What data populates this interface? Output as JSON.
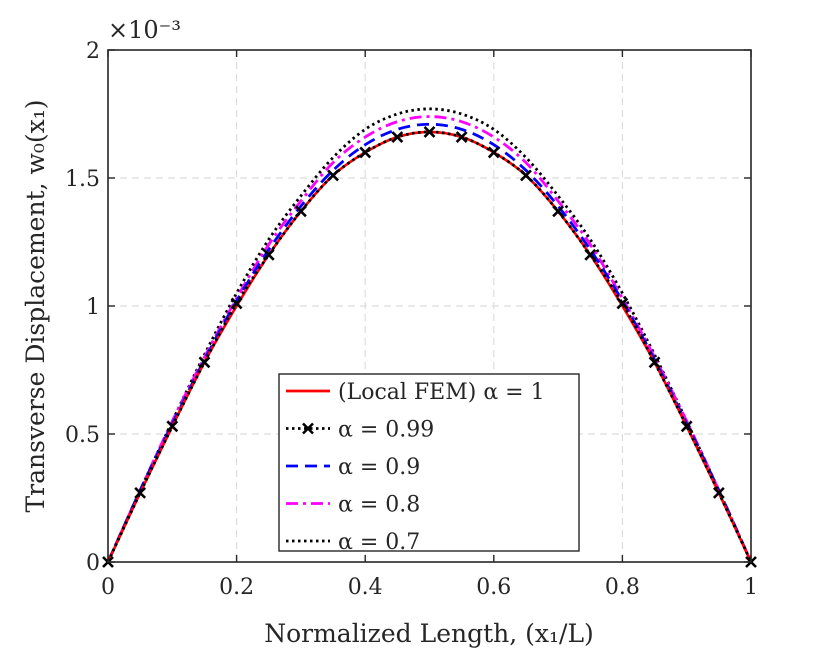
{
  "chart_data": {
    "type": "line",
    "title": "",
    "xlabel": "Normalized Length, (x₁/L)",
    "ylabel": "Transverse Displacement, w₀(x₁)",
    "y_scale_label": "×10⁻³",
    "xlim": [
      0,
      1
    ],
    "ylim": [
      0,
      2
    ],
    "grid": true,
    "legend_position": "bottom-center",
    "x_ticks": [
      0,
      0.2,
      0.4,
      0.6,
      0.8,
      1
    ],
    "x_tick_labels": [
      "0",
      "0.2",
      "0.4",
      "0.6",
      "0.8",
      "1"
    ],
    "y_ticks": [
      0,
      0.5,
      1,
      1.5,
      2
    ],
    "y_tick_labels": [
      "0",
      "0.5",
      "1",
      "1.5",
      "2"
    ],
    "x": [
      0,
      0.05,
      0.1,
      0.15,
      0.2,
      0.25,
      0.3,
      0.35,
      0.4,
      0.45,
      0.5,
      0.55,
      0.6,
      0.65,
      0.7,
      0.75,
      0.8,
      0.85,
      0.9,
      0.95,
      1
    ],
    "series": [
      {
        "name": "(Local FEM) α = 1",
        "color": "#ff0000",
        "style": "solid",
        "marker": "none",
        "values": [
          0,
          0.27,
          0.53,
          0.78,
          1.0,
          1.2,
          1.37,
          1.51,
          1.6,
          1.66,
          1.68,
          1.66,
          1.6,
          1.51,
          1.37,
          1.2,
          1.0,
          0.78,
          0.53,
          0.27,
          0
        ]
      },
      {
        "name": "α = 0.99",
        "color": "#000000",
        "style": "dotted",
        "marker": "x",
        "values": [
          0,
          0.27,
          0.53,
          0.78,
          1.01,
          1.2,
          1.37,
          1.51,
          1.6,
          1.66,
          1.68,
          1.66,
          1.6,
          1.51,
          1.37,
          1.2,
          1.01,
          0.78,
          0.53,
          0.27,
          0
        ]
      },
      {
        "name": "α = 0.9",
        "color": "#0000ff",
        "style": "dashed",
        "marker": "none",
        "values": [
          0,
          0.28,
          0.54,
          0.79,
          1.02,
          1.22,
          1.39,
          1.53,
          1.63,
          1.69,
          1.71,
          1.69,
          1.63,
          1.53,
          1.39,
          1.22,
          1.02,
          0.79,
          0.54,
          0.28,
          0
        ]
      },
      {
        "name": "α = 0.8",
        "color": "#ff00ff",
        "style": "dashdot",
        "marker": "none",
        "values": [
          0,
          0.28,
          0.55,
          0.8,
          1.03,
          1.24,
          1.41,
          1.56,
          1.66,
          1.72,
          1.74,
          1.72,
          1.66,
          1.56,
          1.41,
          1.24,
          1.03,
          0.8,
          0.55,
          0.28,
          0
        ]
      },
      {
        "name": "α = 0.7",
        "color": "#000000",
        "style": "dotted",
        "marker": "none",
        "values": [
          0,
          0.28,
          0.55,
          0.81,
          1.05,
          1.26,
          1.43,
          1.58,
          1.69,
          1.75,
          1.77,
          1.75,
          1.69,
          1.58,
          1.43,
          1.26,
          1.05,
          0.81,
          0.55,
          0.28,
          0
        ]
      }
    ]
  }
}
